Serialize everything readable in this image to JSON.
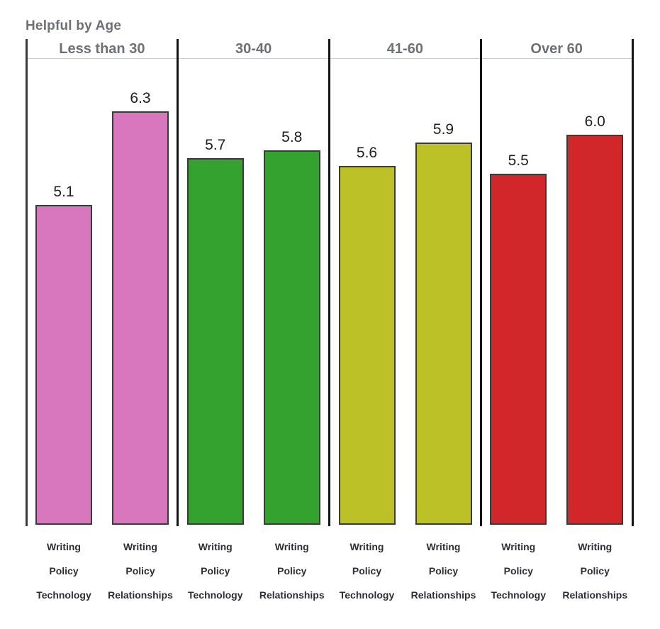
{
  "page_title": "Helpful by Age",
  "chart_data": {
    "type": "bar",
    "title": "Helpful by Age",
    "ylabel": "",
    "xlabel": "",
    "value_axis_visible": false,
    "ylim": [
      1,
      7
    ],
    "grid": false,
    "legend_position": "none",
    "value_labels_shown": true,
    "group_labels": [
      "Less than 30",
      "30-40",
      "41-60",
      "Over 60"
    ],
    "bar_categories_per_group": [
      "Writing Policy Technology",
      "Writing Policy Relationships"
    ],
    "groups": [
      {
        "label": "Less than 30",
        "color": "#d977be",
        "bars": [
          {
            "label_lines": [
              "Writing",
              "Policy",
              "Technology"
            ],
            "value": 5.1
          },
          {
            "label_lines": [
              "Writing",
              "Policy",
              "Relationships"
            ],
            "value": 6.3
          }
        ]
      },
      {
        "label": "30-40",
        "color": "#34a22e",
        "bars": [
          {
            "label_lines": [
              "Writing",
              "Policy",
              "Technology"
            ],
            "value": 5.7
          },
          {
            "label_lines": [
              "Writing",
              "Policy",
              "Relationships"
            ],
            "value": 5.8
          }
        ]
      },
      {
        "label": "41-60",
        "color": "#bcc127",
        "bars": [
          {
            "label_lines": [
              "Writing",
              "Policy",
              "Technology"
            ],
            "value": 5.6
          },
          {
            "label_lines": [
              "Writing",
              "Policy",
              "Relationships"
            ],
            "value": 5.9
          }
        ]
      },
      {
        "label": "Over 60",
        "color": "#d2272a",
        "bars": [
          {
            "label_lines": [
              "Writing",
              "Policy",
              "Technology"
            ],
            "value": 5.5
          },
          {
            "label_lines": [
              "Writing",
              "Policy",
              "Relationships"
            ],
            "value": 6.0
          }
        ]
      }
    ],
    "colors": {
      "title_text": "#6d7076",
      "group_header_text": "#6d7076",
      "value_label_text": "#1f1f1f",
      "category_label_text": "#2e2e36",
      "bar_border": "#3a3a3a",
      "divider_line": "#141414",
      "header_rule": "#cfcfcf",
      "background": "#ffffff"
    }
  }
}
